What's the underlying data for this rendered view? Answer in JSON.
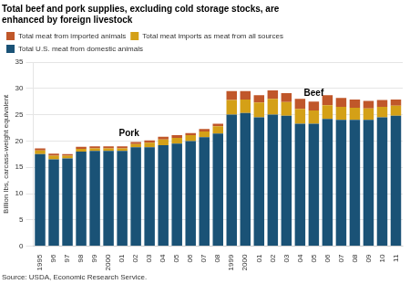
{
  "chart_data": {
    "type": "bar",
    "title": [
      "Total beef and pork supplies, excluding cold storage stocks, are",
      "enhanced by foreign livestock"
    ],
    "ylabel": "Billion lbs, carcass-weight equivalent",
    "source": "Source: USDA, Economic Research Service.",
    "categories": [
      "1995",
      "96",
      "97",
      "98",
      "99",
      "2000",
      "01",
      "02",
      "03",
      "04",
      "05",
      "06",
      "07",
      "08",
      "1999",
      "2000",
      "01",
      "02",
      "03",
      "04",
      "05",
      "06",
      "07",
      "08",
      "09",
      "10",
      "11"
    ],
    "series": [
      {
        "name": "Total U.S. meat from domestic animals",
        "color": "#1a5276",
        "values": [
          17.5,
          16.5,
          16.7,
          18.0,
          18.1,
          18.1,
          18.1,
          18.8,
          18.8,
          19.2,
          19.5,
          20.0,
          20.7,
          21.4,
          25.0,
          25.3,
          24.5,
          25.0,
          24.8,
          23.3,
          23.3,
          24.2,
          24.0,
          24.0,
          24.0,
          24.5,
          24.8
        ]
      },
      {
        "name": "Total meat imports as meat from all sources",
        "color": "#d4a017",
        "values": [
          0.7,
          0.7,
          0.5,
          0.5,
          0.5,
          0.5,
          0.5,
          0.6,
          0.9,
          1.1,
          1.1,
          1.1,
          1.1,
          1.4,
          2.8,
          2.6,
          2.8,
          3.0,
          2.6,
          2.8,
          2.5,
          2.6,
          2.5,
          2.3,
          2.2,
          2.0,
          1.9
        ]
      },
      {
        "name": "Total meat from imported animals",
        "color": "#c0572a",
        "values": [
          0.4,
          0.4,
          0.3,
          0.4,
          0.4,
          0.4,
          0.4,
          0.4,
          0.4,
          0.5,
          0.5,
          0.4,
          0.5,
          0.5,
          1.7,
          1.6,
          1.4,
          1.6,
          1.7,
          1.9,
          1.7,
          1.9,
          1.7,
          1.6,
          1.4,
          1.3,
          1.2
        ]
      }
    ],
    "annotations": [
      {
        "text": "Pork",
        "from": "1995",
        "to": "08"
      },
      {
        "text": "Beef",
        "from": "1999",
        "to": "11"
      }
    ],
    "stacked": true,
    "ylim": [
      0,
      35
    ],
    "yticks": [
      0,
      5,
      10,
      15,
      20,
      25,
      30,
      35
    ],
    "grid": true,
    "legend": "upper left"
  }
}
